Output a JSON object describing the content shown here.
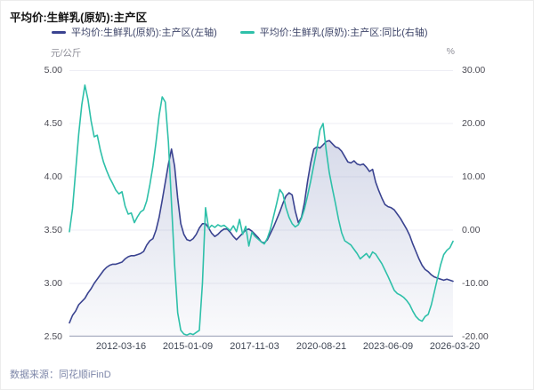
{
  "header": {
    "title": "平均价:生鲜乳(原奶):主产区"
  },
  "legend": {
    "items": [
      {
        "label": "平均价:生鲜乳(原奶):主产区(左轴)",
        "color": "#3a4390"
      },
      {
        "label": "平均价:生鲜乳(原奶):主产区:同比(右轴)",
        "color": "#2ec0a9"
      }
    ]
  },
  "axes": {
    "left": {
      "unit": "元/公斤",
      "ticks": [
        "5.00",
        "4.50",
        "4.00",
        "3.50",
        "3.00",
        "2.50"
      ]
    },
    "right": {
      "unit": "%",
      "ticks": [
        "30.00",
        "20.00",
        "10.00",
        "0.00",
        "-10.00",
        "-20.00"
      ]
    },
    "x": {
      "ticks": [
        "2012-03-16",
        "2015-01-09",
        "2017-11-03",
        "2020-08-21",
        "2023-06-09",
        "2026-03-20"
      ]
    }
  },
  "footer": {
    "text": "数据来源：同花顺iFinD"
  },
  "style": {
    "grid_color": "#ededf4",
    "axis_line_color": "#abb0c2",
    "area_top": "rgba(96,110,170,0.25)",
    "area_bottom": "rgba(96,110,170,0.03)"
  },
  "chart_data": {
    "type": "line",
    "title": "平均价:生鲜乳(原奶):主产区",
    "x": [
      "2010-01",
      "2010-02",
      "2010-04",
      "2010-06",
      "2010-08",
      "2010-10",
      "2010-11",
      "2011-01",
      "2011-03",
      "2011-05",
      "2011-07",
      "2011-08",
      "2011-10",
      "2011-12",
      "2012-02",
      "2012-04",
      "2012-05",
      "2012-07",
      "2012-09",
      "2012-11",
      "2013-01",
      "2013-02",
      "2013-04",
      "2013-06",
      "2013-08",
      "2013-10",
      "2013-11",
      "2014-01",
      "2014-02",
      "2014-03",
      "2014-05",
      "2014-06",
      "2014-08",
      "2014-09",
      "2014-10",
      "2014-12",
      "2015-01",
      "2015-02",
      "2015-04",
      "2015-06",
      "2015-08",
      "2015-10",
      "2015-11",
      "2016-01",
      "2016-03",
      "2016-05",
      "2016-07",
      "2016-08",
      "2016-10",
      "2016-12",
      "2017-02",
      "2017-04",
      "2017-05",
      "2017-07",
      "2017-09",
      "2017-11",
      "2018-01",
      "2018-02",
      "2018-04",
      "2018-06",
      "2018-08",
      "2018-10",
      "2018-11",
      "2019-01",
      "2019-03",
      "2019-05",
      "2019-07",
      "2019-08",
      "2019-10",
      "2019-12",
      "2020-02",
      "2020-04",
      "2020-05",
      "2020-06",
      "2020-08",
      "2020-09",
      "2020-10",
      "2020-12",
      "2021-01",
      "2021-02",
      "2021-04",
      "2021-05",
      "2021-07",
      "2021-08",
      "2021-09",
      "2021-11",
      "2021-12",
      "2022-01",
      "2022-03",
      "2022-04",
      "2022-05",
      "2022-07",
      "2022-08",
      "2022-09",
      "2022-11",
      "2022-12",
      "2023-01",
      "2023-03",
      "2023-04",
      "2023-06",
      "2023-07",
      "2023-08",
      "2023-10",
      "2023-11",
      "2023-12",
      "2024-02",
      "2024-03",
      "2024-04",
      "2024-06",
      "2024-07",
      "2024-08",
      "2024-10",
      "2024-11",
      "2025-01",
      "2025-02",
      "2025-03",
      "2025-05",
      "2025-06",
      "2025-07",
      "2025-09",
      "2025-10",
      "2025-11",
      "2026-01",
      "2026-02",
      "2026-03"
    ],
    "x_tick_labels": [
      "2012-03-16",
      "2015-01-09",
      "2017-11-03",
      "2020-08-21",
      "2023-06-09",
      "2026-03-20"
    ],
    "left_axis": {
      "label": "元/公斤",
      "min": 2.5,
      "max": 5.0,
      "tick_step": 0.5
    },
    "right_axis": {
      "label": "%",
      "min": -20.0,
      "max": 30.0,
      "tick_step": 10.0
    },
    "grid": true,
    "legend_position": "top",
    "series": [
      {
        "name": "平均价:生鲜乳(原奶):主产区(左轴)",
        "axis": "left",
        "color": "#3a4390",
        "area": true,
        "values": [
          2.63,
          2.7,
          2.74,
          2.8,
          2.83,
          2.86,
          2.91,
          2.95,
          3.0,
          3.04,
          3.08,
          3.12,
          3.15,
          3.17,
          3.18,
          3.18,
          3.19,
          3.2,
          3.23,
          3.25,
          3.26,
          3.26,
          3.27,
          3.28,
          3.3,
          3.36,
          3.4,
          3.42,
          3.5,
          3.62,
          3.78,
          3.95,
          4.12,
          4.26,
          4.1,
          3.8,
          3.56,
          3.46,
          3.41,
          3.4,
          3.42,
          3.46,
          3.52,
          3.56,
          3.56,
          3.52,
          3.47,
          3.44,
          3.46,
          3.49,
          3.51,
          3.51,
          3.48,
          3.44,
          3.41,
          3.44,
          3.47,
          3.5,
          3.51,
          3.49,
          3.46,
          3.43,
          3.39,
          3.38,
          3.41,
          3.47,
          3.53,
          3.6,
          3.67,
          3.75,
          3.82,
          3.85,
          3.83,
          3.68,
          3.57,
          3.62,
          3.76,
          3.96,
          4.13,
          4.26,
          4.28,
          4.27,
          4.3,
          4.33,
          4.34,
          4.31,
          4.28,
          4.27,
          4.24,
          4.19,
          4.14,
          4.13,
          4.15,
          4.12,
          4.11,
          4.12,
          4.09,
          4.05,
          4.07,
          3.95,
          3.87,
          3.8,
          3.74,
          3.72,
          3.71,
          3.69,
          3.65,
          3.61,
          3.56,
          3.51,
          3.45,
          3.37,
          3.3,
          3.23,
          3.17,
          3.13,
          3.11,
          3.08,
          3.06,
          3.05,
          3.04,
          3.03,
          3.04,
          3.03,
          3.02
        ]
      },
      {
        "name": "平均价:生鲜乳(原奶):主产区:同比(右轴)",
        "axis": "right",
        "color": "#2ec0a9",
        "area": false,
        "values": [
          -0.3,
          4.0,
          11.0,
          18.0,
          23.5,
          27.2,
          24.5,
          20.5,
          17.5,
          17.8,
          15.0,
          12.8,
          11.2,
          9.8,
          8.7,
          7.5,
          6.8,
          7.2,
          4.5,
          3.0,
          3.2,
          1.4,
          2.5,
          3.4,
          3.8,
          5.5,
          8.5,
          12.0,
          16.5,
          21.5,
          25.0,
          24.0,
          16.5,
          5.0,
          -6.5,
          -15.5,
          -18.8,
          -19.5,
          -19.7,
          -19.4,
          -19.6,
          -19.2,
          -18.8,
          -10.0,
          4.2,
          0.3,
          0.9,
          0.5,
          1.0,
          0.7,
          0.9,
          0.4,
          -0.1,
          0.8,
          -0.3,
          2.0,
          -0.8,
          0.7,
          -3.0,
          -0.4,
          -1.2,
          -1.7,
          -2.2,
          -2.6,
          -1.5,
          0.2,
          2.6,
          5.0,
          7.6,
          6.8,
          4.2,
          2.4,
          1.2,
          0.6,
          1.0,
          2.2,
          4.0,
          6.5,
          9.2,
          12.2,
          15.2,
          18.8,
          20.0,
          15.0,
          10.8,
          7.8,
          5.0,
          2.0,
          -0.5,
          -2.0,
          -2.4,
          -2.8,
          -3.6,
          -4.4,
          -5.4,
          -4.9,
          -4.4,
          -5.2,
          -4.1,
          -4.5,
          -5.4,
          -6.3,
          -7.5,
          -8.7,
          -10.0,
          -11.3,
          -11.9,
          -12.2,
          -12.6,
          -13.2,
          -14.0,
          -15.2,
          -16.2,
          -16.8,
          -17.1,
          -16.2,
          -15.8,
          -14.0,
          -11.5,
          -9.0,
          -6.5,
          -4.6,
          -3.8,
          -3.3,
          -2.1
        ]
      }
    ]
  }
}
